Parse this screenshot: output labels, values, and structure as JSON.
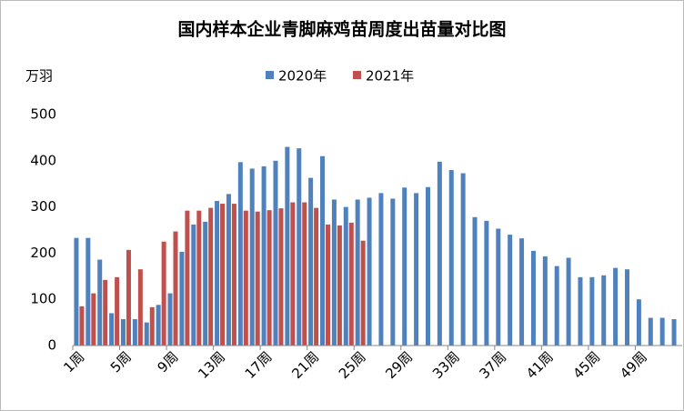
{
  "chart_data": {
    "type": "bar",
    "title": "国内样本企业青脚麻鸡苗周度出苗量对比图",
    "y_unit": "万羽",
    "categories": [
      "1周",
      null,
      null,
      null,
      "5周",
      null,
      null,
      null,
      "9周",
      null,
      null,
      null,
      "13周",
      null,
      null,
      null,
      "17周",
      null,
      null,
      null,
      "21周",
      null,
      null,
      null,
      "25周",
      null,
      null,
      null,
      "29周",
      null,
      null,
      null,
      "33周",
      null,
      null,
      null,
      "37周",
      null,
      null,
      null,
      "41周",
      null,
      null,
      null,
      "45周",
      null,
      null,
      null,
      "49周",
      null,
      null,
      null
    ],
    "series": [
      {
        "name": "2020年",
        "color": "#4f81bd",
        "values": [
          233,
          233,
          186,
          70,
          57,
          57,
          50,
          88,
          113,
          203,
          262,
          268,
          313,
          328,
          397,
          383,
          388,
          400,
          430,
          427,
          363,
          410,
          316,
          300,
          316,
          320,
          330,
          318,
          342,
          330,
          343,
          398,
          380,
          373,
          278,
          270,
          253,
          240,
          232,
          205,
          193,
          172,
          190,
          148,
          148,
          152,
          168,
          165,
          100,
          60,
          60,
          57
        ]
      },
      {
        "name": "2021年",
        "color": "#c0504d",
        "values": [
          85,
          113,
          142,
          148,
          207,
          165,
          83,
          225,
          247,
          292,
          292,
          298,
          307,
          307,
          292,
          290,
          293,
          297,
          310,
          310,
          298,
          262,
          260,
          266,
          227,
          null,
          null,
          null,
          null,
          null,
          null,
          null,
          null,
          null,
          null,
          null,
          null,
          null,
          null,
          null,
          null,
          null,
          null,
          null,
          null,
          null,
          null,
          null,
          null,
          null,
          null,
          null
        ]
      }
    ],
    "ylim": [
      0,
      500
    ],
    "yticks": [
      0,
      100,
      200,
      300,
      400,
      500
    ],
    "grid": false,
    "legend": "top"
  }
}
